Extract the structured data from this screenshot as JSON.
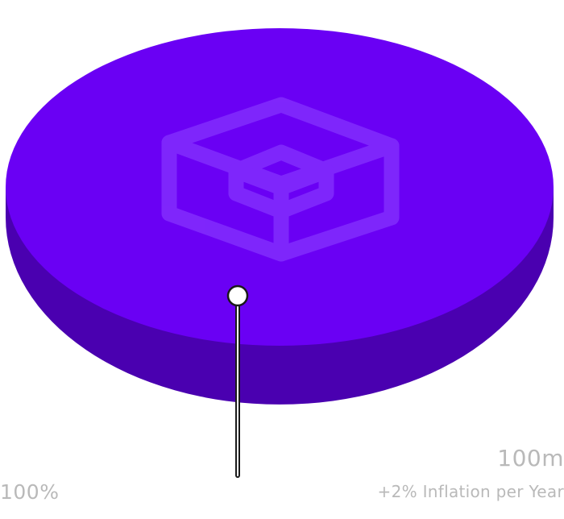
{
  "chart_data": {
    "type": "pie",
    "slices": [
      {
        "percent_label": "100%",
        "value": 100,
        "value_label": "100m",
        "note": "+2% Inflation per Year",
        "color": "#6a00f4",
        "side_color": "#4a00b0"
      }
    ],
    "icon": "box-icon",
    "icon_color": "#8a3bff",
    "pointer_color": "#1a1a1a"
  }
}
